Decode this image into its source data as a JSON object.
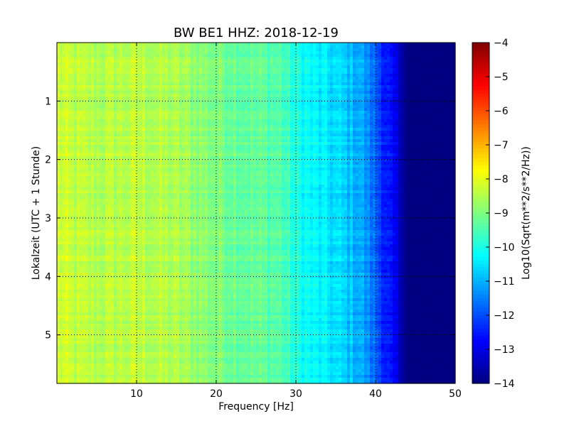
{
  "chart_data": {
    "type": "heatmap",
    "title": "BW BE1 HHZ: 2018-12-19",
    "xlabel": "Frequency [Hz]",
    "ylabel": "Lokalzeit (UTC + 1 Stunde)",
    "xlim": [
      0,
      50
    ],
    "ylim": [
      0,
      5.83
    ],
    "y_inverted": true,
    "x_ticks": [
      10,
      20,
      30,
      40,
      50
    ],
    "x_tick_labels": [
      "10",
      "20",
      "30",
      "40",
      "50"
    ],
    "y_ticks": [
      1,
      2,
      3,
      4,
      5
    ],
    "y_tick_labels": [
      "1",
      "2",
      "3",
      "4",
      "5"
    ],
    "grid": "dotted",
    "colormap": "jet",
    "colorbar": {
      "label": "Log10(Sqrt(m**2/s**2/Hz))",
      "min": -14,
      "max": -4,
      "ticks": [
        -4,
        -5,
        -6,
        -7,
        -8,
        -9,
        -10,
        -11,
        -12,
        -13,
        -14
      ],
      "tick_labels": [
        "−4",
        "−5",
        "−6",
        "−7",
        "−8",
        "−9",
        "−10",
        "−11",
        "−12",
        "−13",
        "−14"
      ]
    },
    "approx_profile": {
      "frequency_hz": [
        0,
        2,
        5,
        10,
        15,
        20,
        25,
        28,
        30,
        32,
        35,
        38,
        40,
        42,
        44,
        50
      ],
      "log10_value": [
        -8.2,
        -8.4,
        -8.5,
        -8.4,
        -8.6,
        -9.0,
        -9.3,
        -9.4,
        -10.0,
        -10.3,
        -10.6,
        -11.0,
        -11.8,
        -12.8,
        -14,
        -14
      ]
    }
  }
}
